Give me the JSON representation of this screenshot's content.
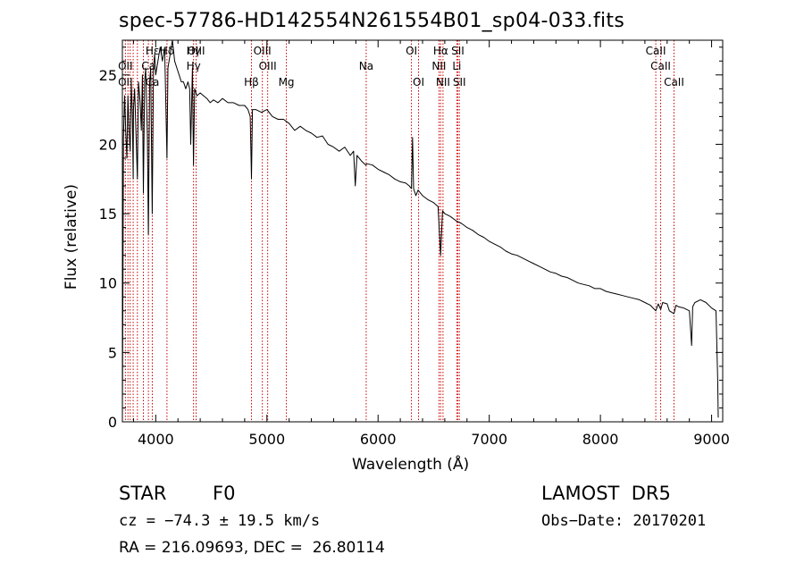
{
  "chart_data": {
    "type": "line",
    "title": "spec-57786-HD142554N261554B01_sp04-033.fits",
    "xlabel": "Wavelength (Å)",
    "ylabel": "Flux (relative)",
    "xlim": [
      3700,
      9100
    ],
    "ylim": [
      0,
      27.5
    ],
    "xticks": [
      4000,
      5000,
      6000,
      7000,
      8000,
      9000
    ],
    "yticks": [
      0,
      5,
      10,
      15,
      20,
      25
    ],
    "grid": false,
    "line_color": "#000000",
    "marker_color": "#cc0000",
    "series": [
      {
        "x": [
          3700,
          3705,
          3710,
          3720,
          3730,
          3740,
          3750,
          3760,
          3770,
          3780,
          3790,
          3797,
          3800,
          3810,
          3820,
          3835,
          3845,
          3860,
          3870,
          3880,
          3889,
          3900,
          3910,
          3925,
          3934,
          3945,
          3955,
          3968,
          3980,
          3990,
          4000,
          4020,
          4040,
          4060,
          4080,
          4101,
          4110,
          4130,
          4150,
          4170,
          4190,
          4210,
          4230,
          4250,
          4270,
          4290,
          4305,
          4315,
          4330,
          4340,
          4350,
          4370,
          4400,
          4430,
          4460,
          4490,
          4520,
          4560,
          4600,
          4650,
          4700,
          4750,
          4800,
          4830,
          4850,
          4861,
          4870,
          4900,
          4950,
          5000,
          5050,
          5100,
          5150,
          5200,
          5250,
          5300,
          5350,
          5400,
          5450,
          5500,
          5550,
          5600,
          5650,
          5700,
          5750,
          5780,
          5795,
          5810,
          5830,
          5850,
          5890,
          5900,
          5950,
          6000,
          6050,
          6100,
          6150,
          6200,
          6250,
          6280,
          6300,
          6310,
          6320,
          6340,
          6360,
          6400,
          6450,
          6500,
          6540,
          6562,
          6580,
          6600,
          6650,
          6700,
          6750,
          6800,
          6850,
          6900,
          6950,
          7000,
          7050,
          7100,
          7150,
          7200,
          7250,
          7300,
          7350,
          7400,
          7450,
          7500,
          7550,
          7600,
          7650,
          7700,
          7750,
          7800,
          7850,
          7900,
          7950,
          8000,
          8050,
          8100,
          8150,
          8200,
          8250,
          8300,
          8350,
          8400,
          8450,
          8498,
          8520,
          8542,
          8560,
          8600,
          8620,
          8662,
          8680,
          8700,
          8750,
          8800,
          8820,
          8830,
          8850,
          8900,
          8950,
          9000,
          9040,
          9055,
          9060
        ],
        "y": [
          0.3,
          9.5,
          20.5,
          23.5,
          21.0,
          19.0,
          23.5,
          21.0,
          19.5,
          24.5,
          22.0,
          17.5,
          22.5,
          24.0,
          21.5,
          17.5,
          24.5,
          23.0,
          21.0,
          25.0,
          16.5,
          24.5,
          25.5,
          20.5,
          13.5,
          24.5,
          25.5,
          15.0,
          25.5,
          26.5,
          25.0,
          26.0,
          27.0,
          26.0,
          27.0,
          19.0,
          25.5,
          26.5,
          27.5,
          26.0,
          25.5,
          25.0,
          24.5,
          24.5,
          24.0,
          24.5,
          24.0,
          20.0,
          25.5,
          18.5,
          24.0,
          23.5,
          23.7,
          23.5,
          23.3,
          23.0,
          23.2,
          23.0,
          23.3,
          23.0,
          23.0,
          22.8,
          22.8,
          22.5,
          22.0,
          17.5,
          22.5,
          22.5,
          22.3,
          22.5,
          22.0,
          21.8,
          21.8,
          21.5,
          21.0,
          21.3,
          21.0,
          20.8,
          20.5,
          20.6,
          20.0,
          19.8,
          19.5,
          19.8,
          19.2,
          19.5,
          17.0,
          19.2,
          19.0,
          18.8,
          18.5,
          18.6,
          18.5,
          18.2,
          18.0,
          17.8,
          17.5,
          17.3,
          17.2,
          17.0,
          16.8,
          20.5,
          16.8,
          16.3,
          16.7,
          16.3,
          16.0,
          15.8,
          15.5,
          12.0,
          15.2,
          15.0,
          14.8,
          14.5,
          14.3,
          14.0,
          13.8,
          13.5,
          13.3,
          13.0,
          12.8,
          12.6,
          12.3,
          12.1,
          12.0,
          11.8,
          11.6,
          11.4,
          11.2,
          11.0,
          10.8,
          10.7,
          10.5,
          10.4,
          10.2,
          10.0,
          9.9,
          9.8,
          9.6,
          9.6,
          9.4,
          9.3,
          9.2,
          9.1,
          9.0,
          8.9,
          8.8,
          8.6,
          8.4,
          8.0,
          8.5,
          8.1,
          8.6,
          8.5,
          8.0,
          7.8,
          8.4,
          8.3,
          8.2,
          8.0,
          5.5,
          8.3,
          8.6,
          8.8,
          8.6,
          8.2,
          8.0,
          3.0,
          0.3
        ]
      }
    ],
    "line_labels": [
      {
        "text": "Hδ",
        "wl": 4101,
        "row": 0
      },
      {
        "text": "OII",
        "wl": 3727,
        "row": 1
      },
      {
        "text": "OII",
        "wl": 3727,
        "row": 2
      },
      {
        "text": "Hε",
        "wl": 3970,
        "row": 0
      },
      {
        "text": "Ca",
        "wl": 3934,
        "row": 1
      },
      {
        "text": "Ca",
        "wl": 3969,
        "row": 2
      },
      {
        "text": "Hγ",
        "wl": 4340,
        "row": 0
      },
      {
        "text": "Hγ",
        "wl": 4340,
        "row": 1
      },
      {
        "text": "OIII",
        "wl": 4363,
        "row": 0
      },
      {
        "text": "OIII",
        "wl": 4959,
        "row": 0
      },
      {
        "text": "OIII",
        "wl": 5007,
        "row": 1
      },
      {
        "text": "Hβ",
        "wl": 4861,
        "row": 2
      },
      {
        "text": "Mg",
        "wl": 5175,
        "row": 2
      },
      {
        "text": "Na",
        "wl": 5893,
        "row": 1
      },
      {
        "text": "OI",
        "wl": 6300,
        "row": 0
      },
      {
        "text": "OI",
        "wl": 6364,
        "row": 2
      },
      {
        "text": "Hα",
        "wl": 6563,
        "row": 0
      },
      {
        "text": "NII",
        "wl": 6548,
        "row": 1
      },
      {
        "text": "NII",
        "wl": 6584,
        "row": 2
      },
      {
        "text": "SII",
        "wl": 6717,
        "row": 0
      },
      {
        "text": "Li",
        "wl": 6708,
        "row": 1
      },
      {
        "text": "SII",
        "wl": 6731,
        "row": 2
      },
      {
        "text": "CaII",
        "wl": 8498,
        "row": 0
      },
      {
        "text": "CaII",
        "wl": 8542,
        "row": 1
      },
      {
        "text": "CaII",
        "wl": 8662,
        "row": 2
      }
    ],
    "marker_lines": [
      3727,
      3750,
      3770,
      3797,
      3835,
      3889,
      3934,
      3969,
      4101,
      4340,
      4363,
      4861,
      4959,
      5007,
      5175,
      5893,
      6300,
      6364,
      6548,
      6563,
      6584,
      6708,
      6717,
      6731,
      8498,
      8542,
      8662
    ]
  },
  "info": {
    "class_label": "STAR",
    "subclass": "F0",
    "survey": "LAMOST  DR5",
    "cz": "cz = −74.3 ± 19.5 km/s",
    "obs_date": "Obs−Date: 20170201",
    "coords": "RA = 216.09693, DEC =  26.80114"
  }
}
